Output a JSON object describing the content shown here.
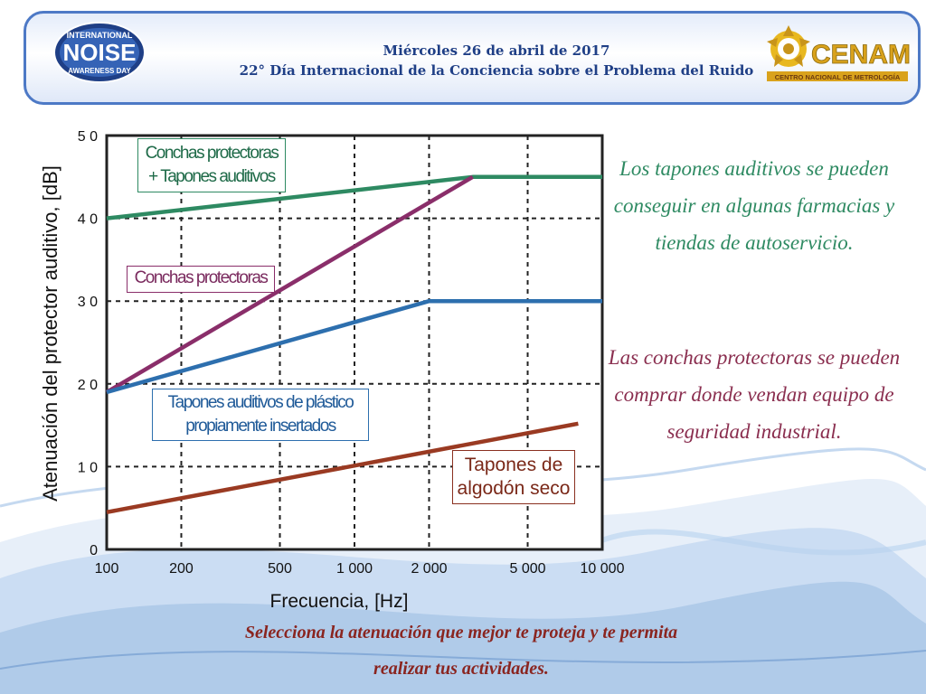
{
  "header": {
    "logo_left": {
      "line1": "INTERNATIONAL",
      "line2": "NOISE",
      "line3": "AWARENESS DAY"
    },
    "date": "Miércoles 26 de abril de 2017",
    "subtitle": "22° Día Internacional de la Conciencia sobre el Problema del Ruido",
    "logo_right": {
      "name": "CENAM",
      "tagline": "CENTRO NACIONAL DE METROLOGÍA"
    }
  },
  "side_text": {
    "p1": "Los tapones auditivos se pueden conseguir en algunas farmacias y tiendas de autoservicio.",
    "p2": "Las conchas protectoras se pueden comprar donde vendan equipo de seguridad industrial."
  },
  "footer": {
    "line1": "Selecciona la atenuación que mejor te proteja y te permita",
    "line2": "realizar tus actividades."
  },
  "colors": {
    "combo": "#2e8a62",
    "conchas": "#8a2e6a",
    "tapones_plastico": "#2d6fae",
    "algodon": "#9a3a22",
    "banner_border": "#4d79c6"
  },
  "chart_data": {
    "type": "line",
    "xlabel": "Frecuencia, [Hz]",
    "ylabel": "Atenuación del protector  auditivo, [dB]",
    "x_scale": "log",
    "xlim": [
      100,
      10000
    ],
    "ylim": [
      0,
      50
    ],
    "grid": true,
    "x_ticks": [
      {
        "value": 100,
        "label": "100"
      },
      {
        "value": 200,
        "label": "200"
      },
      {
        "value": 500,
        "label": "500"
      },
      {
        "value": 1000,
        "label": "1 000"
      },
      {
        "value": 2000,
        "label": "2 000"
      },
      {
        "value": 5000,
        "label": "5 000"
      },
      {
        "value": 10000,
        "label": "10 000"
      }
    ],
    "y_ticks": [
      {
        "value": 0,
        "label": "0"
      },
      {
        "value": 10,
        "label": "1 0"
      },
      {
        "value": 20,
        "label": "2 0"
      },
      {
        "value": 30,
        "label": "3 0"
      },
      {
        "value": 40,
        "label": "4 0"
      },
      {
        "value": 50,
        "label": "5 0"
      }
    ],
    "series": [
      {
        "key": "combo",
        "name_lines": [
          "Conchas protectoras",
          "+ Tapones auditivos"
        ],
        "points": [
          [
            100,
            40
          ],
          [
            3000,
            45
          ],
          [
            10000,
            45
          ]
        ]
      },
      {
        "key": "conchas",
        "name_lines": [
          "Conchas protectoras"
        ],
        "points": [
          [
            100,
            19
          ],
          [
            3000,
            45
          ]
        ]
      },
      {
        "key": "tapones_plastico",
        "name_lines": [
          "Tapones auditivos de plástico",
          "propiamente insertados"
        ],
        "points": [
          [
            100,
            19
          ],
          [
            2000,
            30
          ],
          [
            10000,
            30
          ]
        ]
      },
      {
        "key": "algodon",
        "name_lines": [
          "Tapones de",
          "algodón seco"
        ],
        "points": [
          [
            100,
            4.5
          ],
          [
            8000,
            15.2
          ]
        ]
      }
    ]
  }
}
